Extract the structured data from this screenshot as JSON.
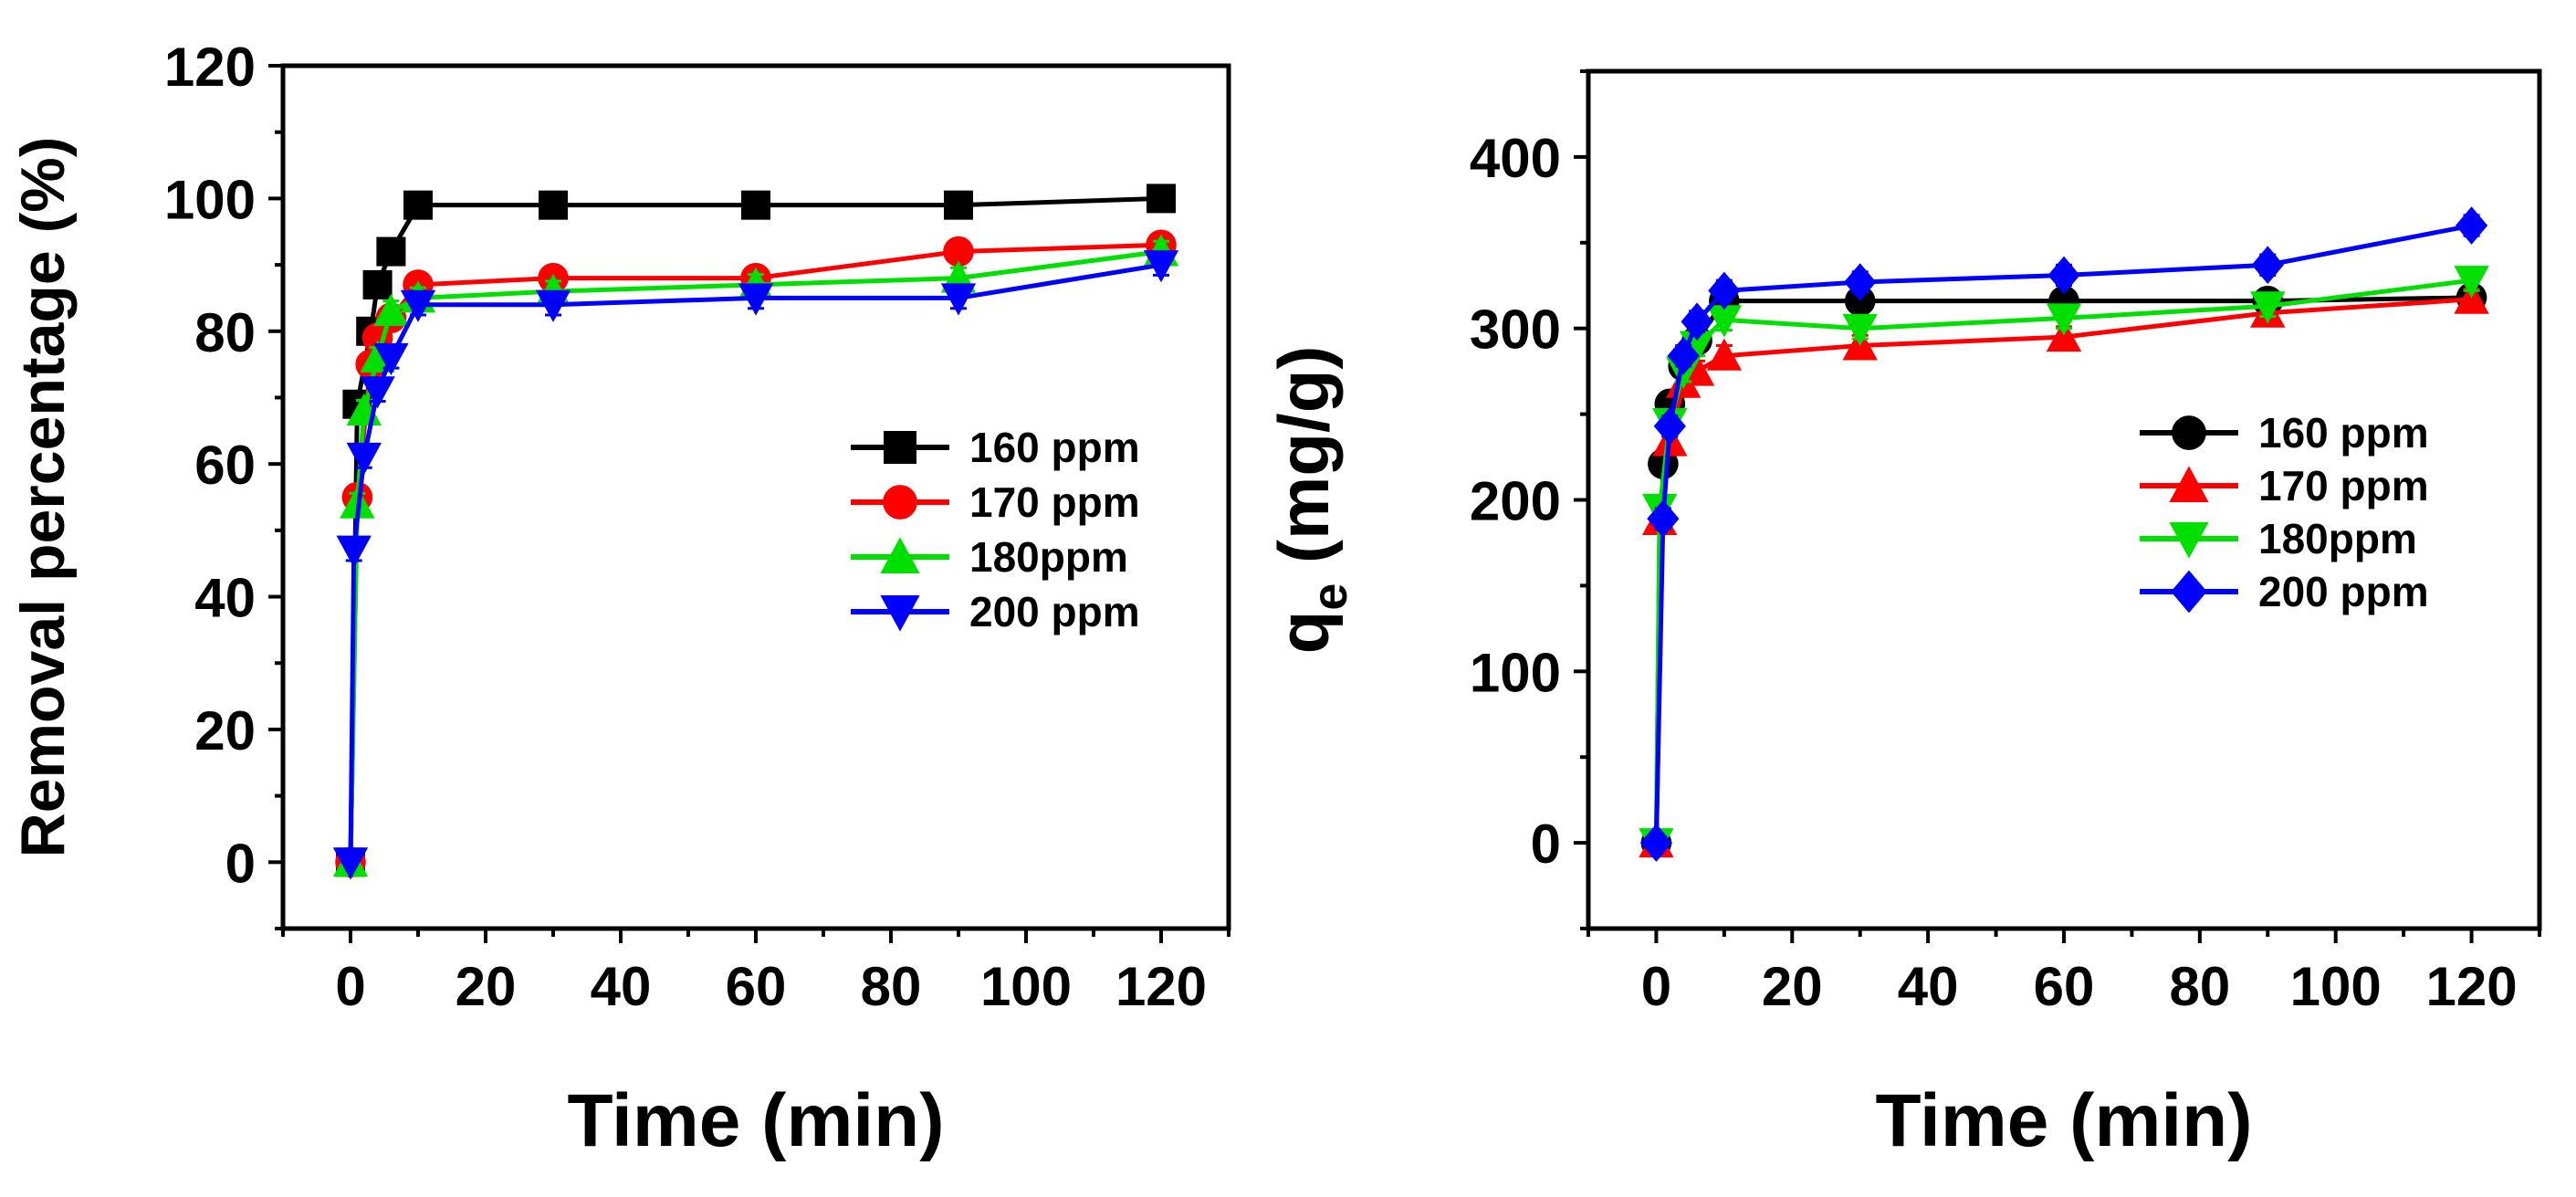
{
  "chart_data": [
    {
      "type": "line",
      "title": "",
      "xlabel": "Time (min)",
      "ylabel": "Removal percentage (%)",
      "ylabel_sub": "",
      "ylabel_rest": "",
      "xlim": [
        -10,
        130
      ],
      "ylim": [
        -10,
        120
      ],
      "xticks": [
        0,
        20,
        40,
        60,
        80,
        100,
        120
      ],
      "yticks": [
        0,
        20,
        40,
        60,
        80,
        100,
        120
      ],
      "legend_position": "right-middle",
      "grid": false,
      "series": [
        {
          "name": "160 ppm",
          "color": "#000000",
          "marker": "square",
          "x": [
            0,
            1,
            3,
            4,
            6,
            10,
            30,
            60,
            90,
            120
          ],
          "y": [
            0,
            69,
            80,
            87,
            92,
            99,
            99,
            99,
            99,
            100
          ]
        },
        {
          "name": "170 ppm",
          "color": "#ff0000",
          "marker": "circle",
          "x": [
            0,
            1,
            3,
            4,
            6,
            10,
            30,
            60,
            90,
            120
          ],
          "y": [
            0,
            55,
            75,
            79,
            82,
            87,
            88,
            88,
            92,
            93
          ]
        },
        {
          "name": "180ppm",
          "color": "#00e000",
          "marker": "triangle-up",
          "x": [
            0,
            1,
            2,
            4,
            6,
            10,
            30,
            60,
            90,
            120
          ],
          "y": [
            0,
            54,
            68,
            76,
            83,
            85,
            86,
            87,
            88,
            92
          ]
        },
        {
          "name": "200 ppm",
          "color": "#0000ff",
          "marker": "triangle-down",
          "x": [
            0,
            0.5,
            2,
            4,
            6,
            10,
            30,
            60,
            90,
            120
          ],
          "y": [
            0,
            47,
            61,
            71,
            76,
            84,
            84,
            85,
            85,
            90
          ]
        }
      ]
    },
    {
      "type": "line",
      "title": "",
      "xlabel": "Time (min)",
      "ylabel": "q",
      "ylabel_sub": "e",
      "ylabel_rest": " (mg/g)",
      "xlim": [
        -10,
        130
      ],
      "ylim": [
        -50,
        450
      ],
      "xticks": [
        0,
        20,
        40,
        60,
        80,
        100,
        120
      ],
      "yticks": [
        0,
        100,
        200,
        300,
        400
      ],
      "legend_position": "right-middle",
      "grid": false,
      "series": [
        {
          "name": "160 ppm",
          "color": "#000000",
          "marker": "circle",
          "x": [
            0,
            1,
            2,
            4,
            6,
            10,
            30,
            60,
            90,
            120
          ],
          "y": [
            0,
            221,
            256,
            278,
            293,
            316,
            316,
            316,
            316,
            318
          ]
        },
        {
          "name": "170 ppm",
          "color": "#ff0000",
          "marker": "triangle-up",
          "x": [
            0,
            0.5,
            2,
            4,
            6,
            10,
            30,
            60,
            90,
            120
          ],
          "y": [
            0,
            188,
            234,
            268,
            275,
            284,
            290,
            295,
            309,
            317
          ]
        },
        {
          "name": "180ppm",
          "color": "#00e000",
          "marker": "triangle-down",
          "x": [
            0,
            0.5,
            2,
            4,
            6,
            10,
            30,
            60,
            90,
            120
          ],
          "y": [
            0,
            195,
            245,
            275,
            290,
            305,
            300,
            306,
            313,
            328
          ]
        },
        {
          "name": "200 ppm",
          "color": "#0000ff",
          "marker": "diamond",
          "x": [
            0,
            1,
            2,
            4,
            6,
            10,
            30,
            60,
            90,
            120
          ],
          "y": [
            0,
            189,
            243,
            284,
            304,
            322,
            327,
            331,
            337,
            360
          ]
        }
      ]
    }
  ]
}
